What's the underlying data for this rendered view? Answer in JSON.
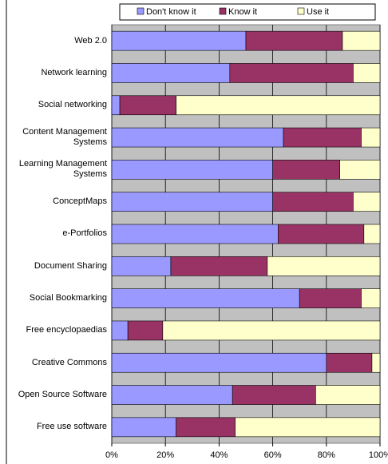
{
  "chart_data": {
    "type": "stacked-barh",
    "categories": [
      "Web 2.0",
      "Network learning",
      "Social networking",
      "Content Management Systems",
      "Learning Management Systems",
      "ConceptMaps",
      "e-Portfolios",
      "Document Sharing",
      "Social Bookmarking",
      "Free encyclopaedias",
      "Creative Commons",
      "Open Source Software",
      "Free use software"
    ],
    "series": [
      {
        "name": "Don't know it",
        "color": "#9999ff",
        "values": [
          50,
          44,
          3,
          64,
          60,
          60,
          62,
          22,
          70,
          6,
          80,
          45,
          24
        ]
      },
      {
        "name": "Know it",
        "color": "#993366",
        "values": [
          36,
          46,
          21,
          29,
          25,
          30,
          32,
          36,
          23,
          13,
          17,
          31,
          22
        ]
      },
      {
        "name": "Use it",
        "color": "#ffffcc",
        "values": [
          14,
          10,
          76,
          7,
          15,
          10,
          6,
          42,
          7,
          81,
          3,
          24,
          54
        ]
      }
    ],
    "xlim": [
      0,
      100
    ],
    "xticks": [
      {
        "value": 0,
        "label": "0%"
      },
      {
        "value": 20,
        "label": "20%"
      },
      {
        "value": 40,
        "label": "40%"
      },
      {
        "value": 60,
        "label": "60%"
      },
      {
        "value": 80,
        "label": "80%"
      },
      {
        "value": 100,
        "label": "100%"
      }
    ],
    "grid": true,
    "legend": "top"
  }
}
